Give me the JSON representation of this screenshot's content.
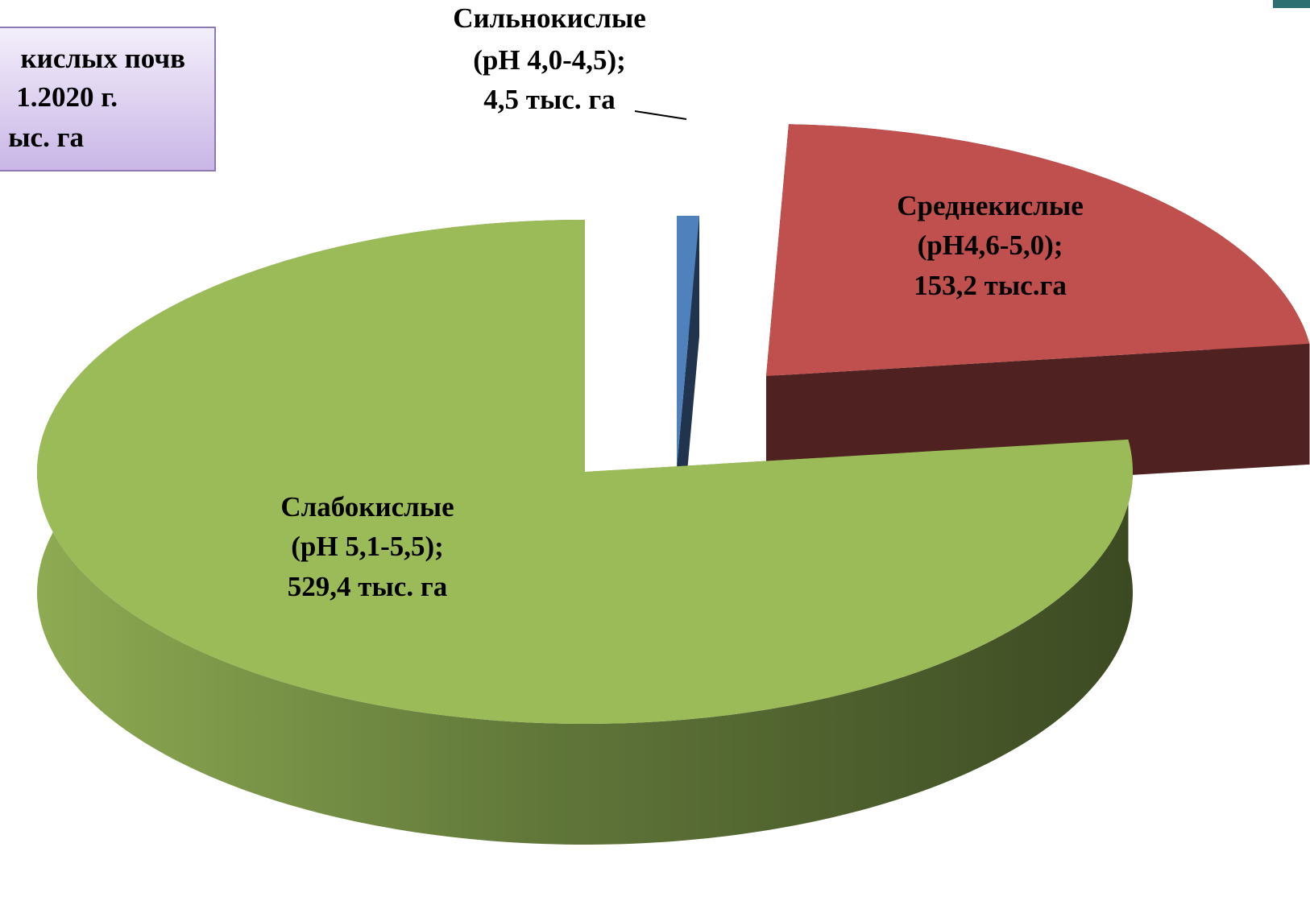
{
  "chart_data": {
    "type": "pie",
    "title_lines": [
      "кислых почв",
      "1.2020 г.",
      "ыс. га"
    ],
    "categories": [
      "Сильнокислые",
      "Среднекислые",
      "Слабокислые"
    ],
    "ph_ranges": [
      "(рН 4,0-4,5);",
      "(рН4,6-5,0);",
      "(рН 5,1-5,5);"
    ],
    "values": [
      4.5,
      153.2,
      529.4
    ],
    "value_labels": [
      "4,5 тыс. га",
      "153,2 тыс.га",
      "529,4 тыс. га"
    ],
    "colors": [
      "#4f81bd",
      "#c0504d",
      "#9bbb59"
    ]
  }
}
